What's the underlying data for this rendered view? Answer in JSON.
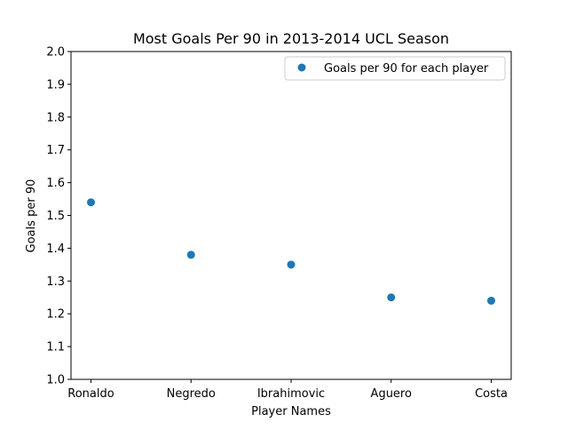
{
  "chart_data": {
    "type": "scatter",
    "title": "Most Goals Per 90 in 2013-2014 UCL Season",
    "xlabel": "Player Names",
    "ylabel": "Goals per 90",
    "categories": [
      "Ronaldo",
      "Negredo",
      "Ibrahimovic",
      "Aguero",
      "Costa"
    ],
    "series": [
      {
        "name": "Goals per 90 for each player",
        "values": [
          1.54,
          1.38,
          1.35,
          1.25,
          1.24
        ]
      }
    ],
    "ylim": [
      1.0,
      2.0
    ],
    "yticks": [
      "1.0",
      "1.1",
      "1.2",
      "1.3",
      "1.4",
      "1.5",
      "1.6",
      "1.7",
      "1.8",
      "1.9",
      "2.0"
    ],
    "grid": false,
    "legend_position": "top-right",
    "colors": {
      "series": "#1f77b4",
      "axes": "#000000",
      "legend_border": "#cccccc"
    }
  }
}
